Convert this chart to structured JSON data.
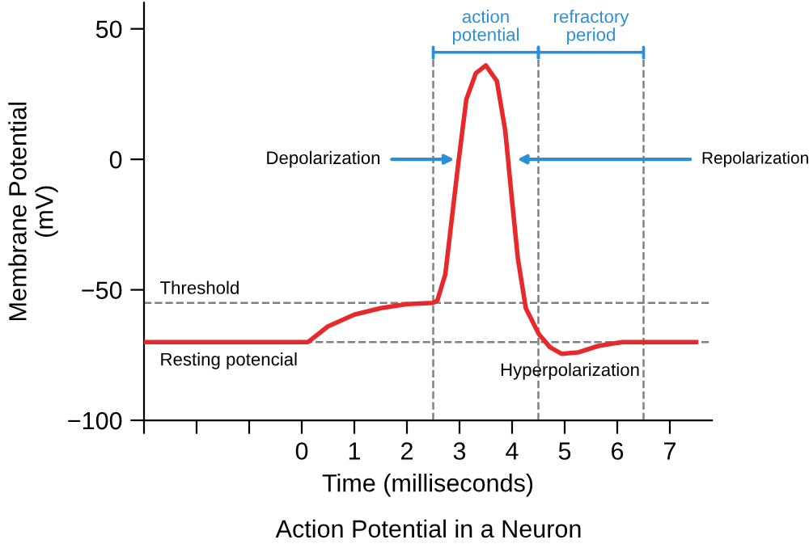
{
  "chart_data": {
    "type": "line",
    "title": "Action Potential in a Neuron",
    "xlabel": "Time (milliseconds)",
    "ylabel": "Membrane Potential\n(mV)",
    "x": [
      -3,
      0.12,
      0.5,
      1.0,
      1.5,
      2.0,
      2.5,
      2.58,
      2.73,
      2.98,
      3.13,
      3.31,
      3.5,
      3.71,
      3.87,
      3.99,
      4.11,
      4.26,
      4.51,
      4.72,
      4.94,
      5.25,
      5.64,
      6.1,
      7.5
    ],
    "series": [
      {
        "color": "#e8282b",
        "values": [
          -70,
          -70,
          -64,
          -59.5,
          -57,
          -55.5,
          -55,
          -54,
          -44,
          -1,
          23,
          33,
          36,
          30,
          11,
          -14,
          -38,
          -57,
          -67,
          -72,
          -74.5,
          -74,
          -71.5,
          -70,
          -70
        ]
      }
    ],
    "xlim": [
      -3,
      7.8
    ],
    "xticks": [
      {
        "value": -3,
        "label": null
      },
      {
        "value": -2,
        "label": null
      },
      {
        "value": -1,
        "label": null
      },
      0,
      1,
      2,
      3,
      4,
      5,
      6,
      7
    ],
    "ylim": [
      -100,
      60
    ],
    "yticks": [
      -100,
      -50,
      0,
      50
    ],
    "ref_lines": [
      {
        "axis": "y",
        "value": -55,
        "label": "Threshold",
        "color": "#808080",
        "line_style": "dashed"
      },
      {
        "axis": "y",
        "value": -70,
        "label": "Resting potencial",
        "color": "#808080",
        "line_style": "dashed"
      },
      {
        "axis": "x",
        "value": 2.5,
        "color": "#808080",
        "line_style": "dashed"
      },
      {
        "axis": "x",
        "value": 4.5,
        "color": "#808080",
        "line_style": "dashed"
      },
      {
        "axis": "x",
        "value": 6.5,
        "color": "#808080",
        "line_style": "dashed"
      }
    ],
    "annotations": [
      "action\npotential",
      "refractory\nperiod",
      {
        "text": "Depolarization",
        "x": 2.9,
        "y": 0
      },
      {
        "text": "Repolarization",
        "x": 4.1,
        "y": 0
      },
      {
        "text": "Hyperpolarization",
        "x": 5.1,
        "y": -75
      }
    ],
    "grid": false,
    "legend": false,
    "marker": "none",
    "line_style": "solid"
  }
}
